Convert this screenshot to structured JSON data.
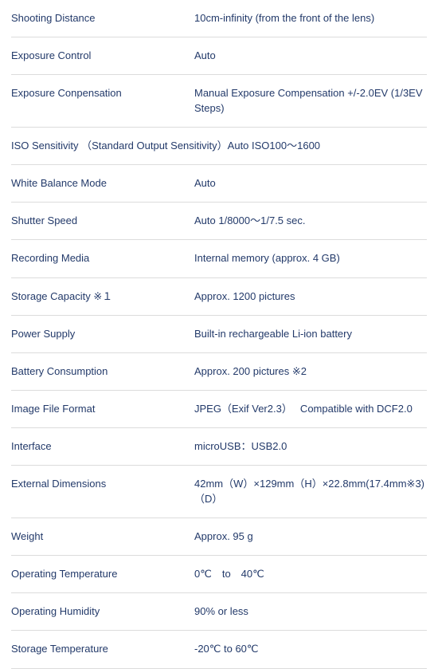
{
  "text_color": "#233a6a",
  "border_color": "#dcdcdc",
  "rows": [
    {
      "label": "Shooting Distance",
      "value": "10cm-infinity (from the front of the lens)"
    },
    {
      "label": "Exposure Control",
      "value": "Auto"
    },
    {
      "label": "Exposure Conpensation",
      "value": "Manual Exposure Compensation +/-2.0EV (1/3EV Steps)"
    },
    {
      "label": "ISO Sensitivity （Standard Output Sensitivity）Auto ISO100～1600",
      "single": true
    },
    {
      "label": "White Balance Mode",
      "value": "Auto"
    },
    {
      "label": "Shutter Speed",
      "value": "Auto 1/8000～1/7.5 sec."
    },
    {
      "label": "Recording Media",
      "value": "Internal memory (approx. 4 GB)"
    },
    {
      "label": "Storage Capacity ※１",
      "value": "Approx. 1200 pictures"
    },
    {
      "label": "Power Supply",
      "value": "Built-in rechargeable Li-ion battery"
    },
    {
      "label": "Battery Consumption",
      "value": "Approx. 200 pictures ※2"
    },
    {
      "label": "Image File Format",
      "value": "JPEG（Exif Ver2.3）　 Compatible with DCF2.0"
    },
    {
      "label": "Interface",
      "value": "microUSB：USB2.0"
    },
    {
      "label": "External Dimensions",
      "value": "42mm（W）×129mm（H）×22.8mm(17.4mm※3)（D）"
    },
    {
      "label": "Weight",
      "value": "Approx. 95 g"
    },
    {
      "label": "Operating Temperature",
      "value": "0℃　to　40℃"
    },
    {
      "label": "Operating Humidity",
      "value": "90% or less"
    },
    {
      "label": "Storage Temperature",
      "value": "-20℃ to 60℃"
    }
  ]
}
